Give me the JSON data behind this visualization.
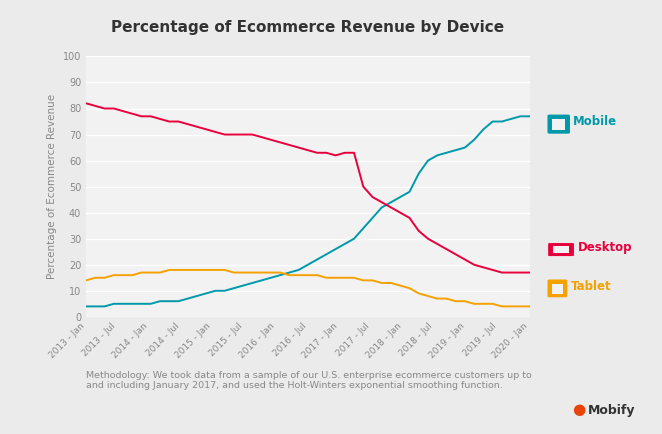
{
  "title": "Percentage of Ecommerce Revenue by Device",
  "ylabel": "Percentage of Ecommerce Revenue",
  "background_color": "#ebebeb",
  "plot_background_color": "#f2f2f2",
  "grid_color": "#ffffff",
  "title_fontsize": 11,
  "ylabel_fontsize": 7.5,
  "methodology_text": "Methodology: We took data from a sample of our U.S. enterprise ecommerce customers up to\nand including January 2017, and used the Holt-Winters exponential smoothing function.",
  "mobify_text": "● Mobify",
  "mobile_color": "#0099aa",
  "desktop_color": "#e8003d",
  "tablet_color": "#f5a100",
  "ylim": [
    0,
    100
  ],
  "tick_labels": [
    "2013 - Jan",
    "2013 - Jul",
    "2014 - Jan",
    "2014 - Jul",
    "2015 - Jan",
    "2015 - Jul",
    "2016 - Jan",
    "2016 - Jul",
    "2017 - Jan",
    "2017 - Jul",
    "2018 - Jan",
    "2018 - Jul",
    "2019 - Jan",
    "2019 - Jul",
    "2020 - Jan"
  ],
  "mobile": [
    4,
    4,
    4,
    5,
    5,
    5,
    5,
    5,
    6,
    6,
    6,
    7,
    8,
    9,
    10,
    10,
    11,
    12,
    13,
    14,
    15,
    16,
    17,
    18,
    20,
    22,
    24,
    26,
    28,
    30,
    34,
    38,
    42,
    44,
    46,
    48,
    55,
    60,
    62,
    63,
    64,
    65,
    68,
    72,
    75,
    75,
    76,
    77,
    77
  ],
  "desktop": [
    82,
    81,
    80,
    80,
    79,
    78,
    77,
    77,
    76,
    75,
    75,
    74,
    73,
    72,
    71,
    70,
    70,
    70,
    70,
    69,
    68,
    67,
    66,
    65,
    64,
    63,
    63,
    62,
    63,
    63,
    50,
    46,
    44,
    42,
    40,
    38,
    33,
    30,
    28,
    26,
    24,
    22,
    20,
    19,
    18,
    17,
    17,
    17,
    17
  ],
  "tablet": [
    14,
    15,
    15,
    16,
    16,
    16,
    17,
    17,
    17,
    18,
    18,
    18,
    18,
    18,
    18,
    18,
    17,
    17,
    17,
    17,
    17,
    17,
    16,
    16,
    16,
    16,
    15,
    15,
    15,
    15,
    14,
    14,
    13,
    13,
    12,
    11,
    9,
    8,
    7,
    7,
    6,
    6,
    5,
    5,
    5,
    4,
    4,
    4,
    4
  ]
}
